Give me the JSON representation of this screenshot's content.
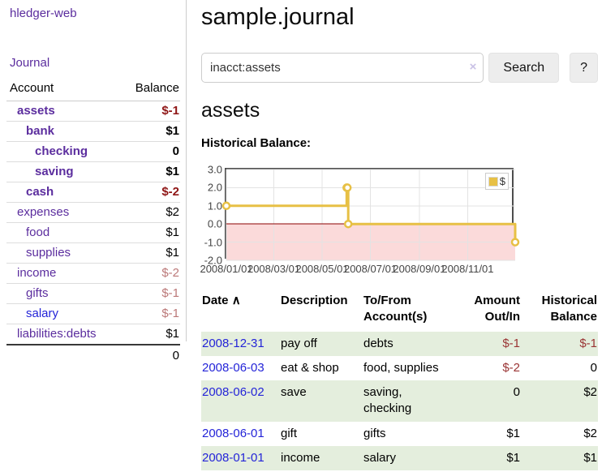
{
  "colors": {
    "accent_purple": "#5b2d9e",
    "link_blue": "#2424d8",
    "negative_strong": "#8f1616",
    "negative_soft": "#bb7878",
    "negative_table": "#9a3434",
    "row_green": "#e4eedd"
  },
  "sidebar": {
    "app_title": "hledger-web",
    "journal_label": "Journal",
    "accounts": {
      "header_account": "Account",
      "header_balance": "Balance",
      "rows": [
        {
          "name": "assets",
          "indent": 1,
          "bold": true,
          "link": "visited",
          "balance": "$-1",
          "tone": "neg-strong"
        },
        {
          "name": "bank",
          "indent": 2,
          "bold": true,
          "link": "visited",
          "balance": "$1",
          "tone": "pos-bold"
        },
        {
          "name": "checking",
          "indent": 3,
          "bold": true,
          "link": "visited",
          "balance": "0",
          "tone": "pos-bold"
        },
        {
          "name": "saving",
          "indent": 3,
          "bold": true,
          "link": "visited",
          "balance": "$1",
          "tone": "pos-bold"
        },
        {
          "name": "cash",
          "indent": 2,
          "bold": true,
          "link": "visited",
          "balance": "$-2",
          "tone": "neg-strong"
        },
        {
          "name": "expenses",
          "indent": 1,
          "bold": false,
          "link": "visited",
          "balance": "$2",
          "tone": "pos"
        },
        {
          "name": "food",
          "indent": 2,
          "bold": false,
          "link": "visited",
          "balance": "$1",
          "tone": "pos"
        },
        {
          "name": "supplies",
          "indent": 2,
          "bold": false,
          "link": "visited",
          "balance": "$1",
          "tone": "pos"
        },
        {
          "name": "income",
          "indent": 1,
          "bold": false,
          "link": "visited",
          "balance": "$-2",
          "tone": "neg-soft"
        },
        {
          "name": "gifts",
          "indent": 2,
          "bold": false,
          "link": "visited",
          "balance": "$-1",
          "tone": "neg-soft"
        },
        {
          "name": "salary",
          "indent": 2,
          "bold": false,
          "link": "new",
          "balance": "$-1",
          "tone": "neg-soft"
        },
        {
          "name": "liabilities:debts",
          "indent": 1,
          "bold": false,
          "link": "visited",
          "balance": "$1",
          "tone": "pos"
        }
      ],
      "total": "0"
    }
  },
  "main": {
    "title": "sample.journal",
    "search": {
      "value": "inacct:assets",
      "clear_icon": "×",
      "button_label": "Search",
      "help_label": "?"
    },
    "account_heading": "assets",
    "chart_label": "Historical Balance:",
    "register": {
      "headers": {
        "date": "Date",
        "sort_icon": "∧",
        "description": "Description",
        "tofrom_line1": "To/From",
        "tofrom_line2": "Account(s)",
        "amount_line1": "Amount",
        "amount_line2": "Out/In",
        "balance_line1": "Historical",
        "balance_line2": "Balance"
      },
      "rows": [
        {
          "date": "2008-12-31",
          "description": "pay off",
          "accounts": "debts",
          "amount": "$-1",
          "amount_negative": true,
          "balance": "$-1",
          "balance_negative": true,
          "shaded": true
        },
        {
          "date": "2008-06-03",
          "description": "eat & shop",
          "accounts": "food, supplies",
          "amount": "$-2",
          "amount_negative": true,
          "balance": "0",
          "balance_negative": false,
          "shaded": false
        },
        {
          "date": "2008-06-02",
          "description": "save",
          "accounts": "saving, checking",
          "amount": "0",
          "amount_negative": false,
          "balance": "$2",
          "balance_negative": false,
          "shaded": true
        },
        {
          "date": "2008-06-01",
          "description": "gift",
          "accounts": "gifts",
          "amount": "$1",
          "amount_negative": false,
          "balance": "$2",
          "balance_negative": false,
          "shaded": false
        },
        {
          "date": "2008-01-01",
          "description": "income",
          "accounts": "salary",
          "amount": "$1",
          "amount_negative": false,
          "balance": "$1",
          "balance_negative": false,
          "shaded": true
        }
      ]
    }
  },
  "chart_data": {
    "type": "line",
    "step": true,
    "title": "Historical Balance",
    "xlabel": "",
    "ylabel": "",
    "ylim": [
      -2,
      3
    ],
    "x_range": [
      "2008-01-01",
      "2008-12-31"
    ],
    "grid": true,
    "legend_position": "top-right",
    "legend": [
      {
        "label": "$",
        "color": "#e7c045"
      }
    ],
    "y_ticks": [
      {
        "value": 3,
        "label": "3.0"
      },
      {
        "value": 2,
        "label": "2.0"
      },
      {
        "value": 1,
        "label": "1.0"
      },
      {
        "value": 0,
        "label": "0.0"
      },
      {
        "value": -1,
        "label": "-1.0"
      },
      {
        "value": -2,
        "label": "-2.0"
      }
    ],
    "x_ticks": [
      {
        "date": "2008-01-01",
        "label": "2008/01/01"
      },
      {
        "date": "2008-03-01",
        "label": "2008/03/01"
      },
      {
        "date": "2008-05-01",
        "label": "2008/05/01"
      },
      {
        "date": "2008-07-01",
        "label": "2008/07/01"
      },
      {
        "date": "2008-09-01",
        "label": "2008/09/01"
      },
      {
        "date": "2008-11-01",
        "label": "2008/11/01"
      }
    ],
    "series": [
      {
        "name": "$",
        "color": "#e7c045",
        "marker_fill": "#ffffff",
        "points": [
          [
            "2008-01-01",
            1
          ],
          [
            "2008-06-01",
            2
          ],
          [
            "2008-06-02",
            2
          ],
          [
            "2008-06-03",
            0
          ],
          [
            "2008-12-31",
            -1
          ]
        ]
      }
    ],
    "zero_line_color": "#8b0000",
    "negative_region_color": "#fbdada",
    "grid_color": "#e3e3e3",
    "border_color": "#4d4d4d"
  }
}
